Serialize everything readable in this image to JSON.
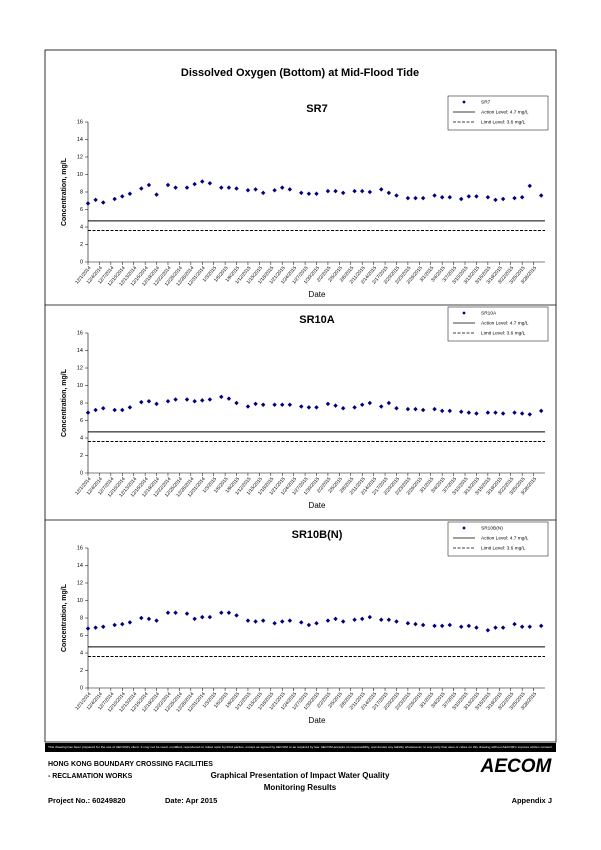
{
  "title": "Dissolved Oxygen (Bottom) at Mid-Flood Tide",
  "chart_data": [
    {
      "type": "scatter",
      "title": "SR7",
      "xlabel": "Date",
      "ylabel": "Concentration, mg/L",
      "xlim": [
        "12/1/2014",
        "3/31/2015"
      ],
      "ylim": [
        0,
        16
      ],
      "yticks": [
        0,
        2,
        4,
        6,
        8,
        10,
        12,
        14,
        16
      ],
      "xticks": [
        "12/1/2014",
        "12/4/2014",
        "12/7/2014",
        "12/10/2014",
        "12/13/2014",
        "12/16/2014",
        "12/19/2014",
        "12/22/2014",
        "12/25/2014",
        "12/28/2014",
        "12/31/2014",
        "1/3/2015",
        "1/6/2015",
        "1/9/2015",
        "1/12/2015",
        "1/15/2015",
        "1/18/2015",
        "1/21/2015",
        "1/24/2015",
        "1/27/2015",
        "1/30/2015",
        "2/2/2015",
        "2/5/2015",
        "2/8/2015",
        "2/11/2015",
        "2/14/2015",
        "2/17/2015",
        "2/20/2015",
        "2/23/2015",
        "2/26/2015",
        "3/1/2015",
        "3/4/2015",
        "3/7/2015",
        "3/10/2015",
        "3/13/2015",
        "3/16/2015",
        "3/19/2015",
        "3/22/2015",
        "3/25/2015",
        "3/28/2015"
      ],
      "x": [
        "12/1/2014",
        "12/3/2014",
        "12/5/2014",
        "12/8/2014",
        "12/10/2014",
        "12/12/2014",
        "12/15/2014",
        "12/17/2014",
        "12/19/2014",
        "12/22/2014",
        "12/24/2014",
        "12/27/2014",
        "12/29/2014",
        "12/31/2014",
        "1/2/2015",
        "1/5/2015",
        "1/7/2015",
        "1/9/2015",
        "1/12/2015",
        "1/14/2015",
        "1/16/2015",
        "1/19/2015",
        "1/21/2015",
        "1/23/2015",
        "1/26/2015",
        "1/28/2015",
        "1/30/2015",
        "2/2/2015",
        "2/4/2015",
        "2/6/2015",
        "2/9/2015",
        "2/11/2015",
        "2/13/2015",
        "2/16/2015",
        "2/18/2015",
        "2/20/2015",
        "2/23/2015",
        "2/25/2015",
        "2/27/2015",
        "3/2/2015",
        "3/4/2015",
        "3/6/2015",
        "3/9/2015",
        "3/11/2015",
        "3/13/2015",
        "3/16/2015",
        "3/18/2015",
        "3/20/2015",
        "3/23/2015",
        "3/25/2015",
        "3/27/2015",
        "3/30/2015"
      ],
      "series": [
        {
          "name": "SR7",
          "color": "#000080",
          "values": [
            6.7,
            7.1,
            6.8,
            7.2,
            7.5,
            7.8,
            8.4,
            8.8,
            7.7,
            8.8,
            8.5,
            8.5,
            8.9,
            9.2,
            9.0,
            8.5,
            8.5,
            8.4,
            8.2,
            8.3,
            7.9,
            8.2,
            8.5,
            8.3,
            7.9,
            7.8,
            7.8,
            8.1,
            8.1,
            7.9,
            8.1,
            8.1,
            8.0,
            8.3,
            7.9,
            7.6,
            7.3,
            7.3,
            7.3,
            7.6,
            7.4,
            7.4,
            7.2,
            7.5,
            7.5,
            7.4,
            7.1,
            7.2,
            7.3,
            7.4,
            8.7,
            7.6
          ]
        }
      ],
      "reference_lines": [
        {
          "name": "Action Level: 4.7 mg/L",
          "value": 4.7,
          "style": "solid"
        },
        {
          "name": "Limit Level: 3.6 mg/L",
          "value": 3.6,
          "style": "dashed"
        }
      ]
    },
    {
      "type": "scatter",
      "title": "SR10A",
      "xlabel": "Date",
      "ylabel": "Concentration, mg/L",
      "xlim": [
        "12/1/2014",
        "3/31/2015"
      ],
      "ylim": [
        0,
        16
      ],
      "yticks": [
        0,
        2,
        4,
        6,
        8,
        10,
        12,
        14,
        16
      ],
      "xticks": [
        "12/1/2014",
        "12/4/2014",
        "12/7/2014",
        "12/10/2014",
        "12/13/2014",
        "12/16/2014",
        "12/19/2014",
        "12/22/2014",
        "12/25/2014",
        "12/28/2014",
        "12/31/2014",
        "1/3/2015",
        "1/6/2015",
        "1/9/2015",
        "1/12/2015",
        "1/15/2015",
        "1/18/2015",
        "1/21/2015",
        "1/24/2015",
        "1/27/2015",
        "1/30/2015",
        "2/2/2015",
        "2/5/2015",
        "2/8/2015",
        "2/11/2015",
        "2/14/2015",
        "2/17/2015",
        "2/20/2015",
        "2/23/2015",
        "2/26/2015",
        "3/1/2015",
        "3/4/2015",
        "3/7/2015",
        "3/10/2015",
        "3/13/2015",
        "3/16/2015",
        "3/19/2015",
        "3/22/2015",
        "3/25/2015",
        "3/28/2015"
      ],
      "x": [
        "12/1/2014",
        "12/3/2014",
        "12/5/2014",
        "12/8/2014",
        "12/10/2014",
        "12/12/2014",
        "12/15/2014",
        "12/17/2014",
        "12/19/2014",
        "12/22/2014",
        "12/24/2014",
        "12/27/2014",
        "12/29/2014",
        "12/31/2014",
        "1/2/2015",
        "1/5/2015",
        "1/7/2015",
        "1/9/2015",
        "1/12/2015",
        "1/14/2015",
        "1/16/2015",
        "1/19/2015",
        "1/21/2015",
        "1/23/2015",
        "1/26/2015",
        "1/28/2015",
        "1/30/2015",
        "2/2/2015",
        "2/4/2015",
        "2/6/2015",
        "2/9/2015",
        "2/11/2015",
        "2/13/2015",
        "2/16/2015",
        "2/18/2015",
        "2/20/2015",
        "2/23/2015",
        "2/25/2015",
        "2/27/2015",
        "3/2/2015",
        "3/4/2015",
        "3/6/2015",
        "3/9/2015",
        "3/11/2015",
        "3/13/2015",
        "3/16/2015",
        "3/18/2015",
        "3/20/2015",
        "3/23/2015",
        "3/25/2015",
        "3/27/2015",
        "3/30/2015"
      ],
      "series": [
        {
          "name": "SR10A",
          "color": "#000080",
          "values": [
            6.9,
            7.2,
            7.4,
            7.2,
            7.2,
            7.5,
            8.1,
            8.2,
            7.9,
            8.2,
            8.4,
            8.4,
            8.2,
            8.3,
            8.4,
            8.7,
            8.5,
            8.0,
            7.6,
            7.9,
            7.8,
            7.8,
            7.8,
            7.8,
            7.6,
            7.5,
            7.5,
            7.9,
            7.7,
            7.4,
            7.5,
            7.8,
            8.0,
            7.6,
            8.0,
            7.4,
            7.3,
            7.3,
            7.2,
            7.3,
            7.1,
            7.1,
            7.0,
            6.9,
            6.8,
            6.9,
            6.9,
            6.8,
            6.9,
            6.8,
            6.7,
            7.1
          ]
        }
      ],
      "reference_lines": [
        {
          "name": "Action Level: 4.7 mg/L",
          "value": 4.7,
          "style": "solid"
        },
        {
          "name": "Limit Level: 3.6 mg/L",
          "value": 3.6,
          "style": "dashed"
        }
      ]
    },
    {
      "type": "scatter",
      "title": "SR10B(N)",
      "xlabel": "Date",
      "ylabel": "Concentration, mg/L",
      "xlim": [
        "12/1/2014",
        "3/31/2015"
      ],
      "ylim": [
        0,
        16
      ],
      "yticks": [
        0,
        2,
        4,
        6,
        8,
        10,
        12,
        14,
        16
      ],
      "xticks": [
        "12/1/2014",
        "12/4/2014",
        "12/7/2014",
        "12/10/2014",
        "12/13/2014",
        "12/16/2014",
        "12/19/2014",
        "12/22/2014",
        "12/25/2014",
        "12/28/2014",
        "12/31/2014",
        "1/3/2015",
        "1/6/2015",
        "1/9/2015",
        "1/12/2015",
        "1/15/2015",
        "1/18/2015",
        "1/21/2015",
        "1/24/2015",
        "1/27/2015",
        "1/30/2015",
        "2/2/2015",
        "2/5/2015",
        "2/8/2015",
        "2/11/2015",
        "2/14/2015",
        "2/17/2015",
        "2/20/2015",
        "2/23/2015",
        "2/26/2015",
        "3/1/2015",
        "3/4/2015",
        "3/7/2015",
        "3/10/2015",
        "3/13/2015",
        "3/16/2015",
        "3/19/2015",
        "3/22/2015",
        "3/25/2015",
        "3/28/2015"
      ],
      "x": [
        "12/1/2014",
        "12/3/2014",
        "12/5/2014",
        "12/8/2014",
        "12/10/2014",
        "12/12/2014",
        "12/15/2014",
        "12/17/2014",
        "12/19/2014",
        "12/22/2014",
        "12/24/2014",
        "12/27/2014",
        "12/29/2014",
        "12/31/2014",
        "1/2/2015",
        "1/5/2015",
        "1/7/2015",
        "1/9/2015",
        "1/12/2015",
        "1/14/2015",
        "1/16/2015",
        "1/19/2015",
        "1/21/2015",
        "1/23/2015",
        "1/26/2015",
        "1/28/2015",
        "1/30/2015",
        "2/2/2015",
        "2/4/2015",
        "2/6/2015",
        "2/9/2015",
        "2/11/2015",
        "2/13/2015",
        "2/16/2015",
        "2/18/2015",
        "2/20/2015",
        "2/23/2015",
        "2/25/2015",
        "2/27/2015",
        "3/2/2015",
        "3/4/2015",
        "3/6/2015",
        "3/9/2015",
        "3/11/2015",
        "3/13/2015",
        "3/16/2015",
        "3/18/2015",
        "3/20/2015",
        "3/23/2015",
        "3/25/2015",
        "3/27/2015",
        "3/30/2015"
      ],
      "series": [
        {
          "name": "SR10B(N)",
          "color": "#000080",
          "values": [
            6.8,
            6.9,
            7.0,
            7.2,
            7.3,
            7.5,
            8.0,
            7.9,
            7.7,
            8.6,
            8.6,
            8.5,
            7.9,
            8.1,
            8.1,
            8.6,
            8.6,
            8.3,
            7.7,
            7.6,
            7.7,
            7.4,
            7.6,
            7.7,
            7.5,
            7.2,
            7.4,
            7.7,
            7.9,
            7.6,
            7.8,
            7.9,
            8.1,
            7.8,
            7.8,
            7.6,
            7.4,
            7.3,
            7.2,
            7.1,
            7.1,
            7.2,
            7.0,
            7.1,
            6.9,
            6.6,
            6.9,
            6.9,
            7.3,
            7.0,
            7.0,
            7.1
          ]
        }
      ],
      "reference_lines": [
        {
          "name": "Action Level: 4.7 mg/L",
          "value": 4.7,
          "style": "solid"
        },
        {
          "name": "Limit Level: 3.6 mg/L",
          "value": 3.6,
          "style": "dashed"
        }
      ]
    }
  ],
  "footer": {
    "disclaimer": "This drawing has been prepared for the use of AECOM's client. It may not be used, modified, reproduced or relied upon by third parties, except as agreed by AECOM or as required by law. AECOM accepts no responsibility, and denies any liability whatsoever, to any party that uses or relies on this drawing without AECOM's express written consent.",
    "project_name_1": "HONG KONG BOUNDARY CROSSING FACILITIES",
    "project_name_2": "- RECLAMATION WORKS",
    "report_title_1": "Graphical Presentation of Impact Water Quality",
    "report_title_2": "Monitoring Results",
    "logo": "AECOM",
    "project_no": "Project No.: 60249820",
    "date": "Date: Apr 2015",
    "appendix": "Appendix J"
  }
}
